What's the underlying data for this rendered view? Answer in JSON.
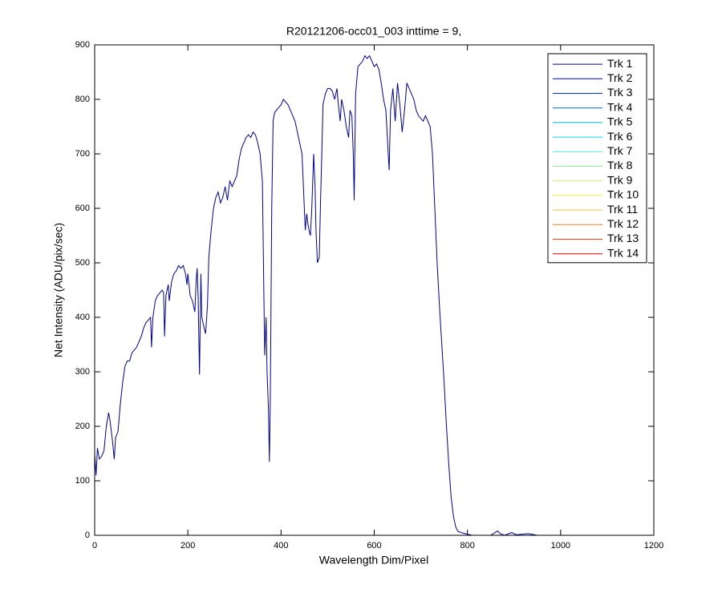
{
  "chart_data": {
    "type": "line",
    "title": "R20121206-occ01_003 inttime = 9,",
    "xlabel": "Wavelength Dim/Pixel",
    "ylabel": "Net Intensity (ADU/pix/sec)",
    "xlim": [
      0,
      1200
    ],
    "xticks": [
      0,
      200,
      400,
      600,
      800,
      1000,
      1200
    ],
    "ylim": [
      0,
      900
    ],
    "yticks": [
      0,
      100,
      200,
      300,
      400,
      500,
      600,
      700,
      800,
      900
    ],
    "legend": "upper right",
    "series": [
      {
        "name": "Trk 1",
        "color": "#00008f",
        "x": [
          0,
          3,
          6,
          10,
          15,
          20,
          25,
          30,
          33,
          38,
          42,
          45,
          50,
          55,
          60,
          65,
          70,
          75,
          80,
          85,
          90,
          95,
          100,
          105,
          110,
          115,
          120,
          122,
          125,
          130,
          135,
          140,
          145,
          148,
          150,
          153,
          158,
          160,
          165,
          170,
          175,
          180,
          185,
          190,
          195,
          198,
          200,
          205,
          210,
          215,
          218,
          220,
          222,
          225,
          228,
          230,
          235,
          238,
          242,
          245,
          250,
          255,
          260,
          265,
          270,
          275,
          280,
          285,
          290,
          295,
          300,
          305,
          310,
          315,
          320,
          325,
          330,
          335,
          340,
          345,
          350,
          355,
          360,
          363,
          365,
          368,
          370,
          373,
          375,
          377,
          380,
          383,
          386,
          390,
          395,
          400,
          405,
          410,
          415,
          420,
          425,
          430,
          435,
          440,
          445,
          450,
          452,
          455,
          458,
          460,
          463,
          466,
          470,
          473,
          475,
          478,
          482,
          485,
          488,
          490,
          495,
          500,
          505,
          510,
          515,
          520,
          523,
          527,
          530,
          535,
          540,
          545,
          548,
          552,
          555,
          557,
          560,
          565,
          570,
          575,
          580,
          585,
          590,
          595,
          600,
          605,
          610,
          615,
          620,
          625,
          630,
          632,
          635,
          640,
          645,
          650,
          655,
          660,
          665,
          670,
          675,
          680,
          685,
          690,
          695,
          700,
          705,
          710,
          715,
          720,
          725,
          730,
          735,
          740,
          745,
          750,
          755,
          760,
          765,
          770,
          775,
          780,
          790,
          800,
          810,
          850,
          865,
          870,
          880,
          895,
          905,
          930,
          950,
          1023
        ],
        "values": [
          150,
          110,
          160,
          140,
          145,
          155,
          200,
          225,
          210,
          175,
          140,
          180,
          190,
          240,
          280,
          310,
          320,
          320,
          335,
          340,
          345,
          355,
          365,
          380,
          390,
          395,
          400,
          345,
          400,
          430,
          440,
          445,
          450,
          445,
          365,
          440,
          460,
          430,
          465,
          480,
          485,
          495,
          490,
          495,
          480,
          460,
          480,
          440,
          430,
          410,
          470,
          490,
          440,
          295,
          480,
          400,
          380,
          370,
          420,
          510,
          560,
          600,
          620,
          630,
          610,
          620,
          640,
          615,
          650,
          640,
          650,
          660,
          690,
          710,
          720,
          730,
          735,
          730,
          740,
          735,
          720,
          700,
          650,
          450,
          330,
          400,
          300,
          230,
          135,
          250,
          600,
          760,
          775,
          780,
          785,
          790,
          800,
          795,
          790,
          780,
          770,
          760,
          740,
          720,
          700,
          600,
          560,
          590,
          570,
          560,
          550,
          600,
          700,
          640,
          560,
          500,
          510,
          620,
          720,
          790,
          810,
          820,
          820,
          815,
          800,
          820,
          790,
          760,
          800,
          780,
          750,
          730,
          780,
          770,
          700,
          615,
          810,
          860,
          865,
          870,
          880,
          875,
          880,
          870,
          860,
          865,
          855,
          830,
          800,
          780,
          700,
          670,
          780,
          820,
          760,
          830,
          790,
          740,
          780,
          830,
          820,
          810,
          800,
          780,
          770,
          765,
          760,
          770,
          760,
          750,
          700,
          600,
          500,
          420,
          350,
          280,
          200,
          130,
          70,
          35,
          15,
          7,
          4,
          2,
          0,
          0,
          8,
          3,
          0,
          5,
          1,
          3,
          0,
          0
        ]
      },
      {
        "name": "Trk 2",
        "color": "#0000cf",
        "x": [
          0,
          1023
        ],
        "values": [
          0,
          0
        ]
      },
      {
        "name": "Trk 3",
        "color": "#0030b8",
        "x": [
          0,
          1023
        ],
        "values": [
          0,
          0
        ]
      },
      {
        "name": "Trk 4",
        "color": "#0070a8",
        "x": [
          0,
          1023
        ],
        "values": [
          0,
          0
        ]
      },
      {
        "name": "Trk 5",
        "color": "#00b0c8",
        "x": [
          0,
          1023
        ],
        "values": [
          0,
          0
        ]
      },
      {
        "name": "Trk 6",
        "color": "#10d8d8",
        "x": [
          0,
          1023
        ],
        "values": [
          0,
          0
        ]
      },
      {
        "name": "Trk 7",
        "color": "#50e8e0",
        "x": [
          0,
          1023
        ],
        "values": [
          0,
          0
        ]
      },
      {
        "name": "Trk 8",
        "color": "#90f090",
        "x": [
          0,
          1023
        ],
        "values": [
          0,
          0
        ]
      },
      {
        "name": "Trk 9",
        "color": "#c8f070",
        "x": [
          0,
          1023
        ],
        "values": [
          0,
          0
        ]
      },
      {
        "name": "Trk 10",
        "color": "#f0f040",
        "x": [
          0,
          1023
        ],
        "values": [
          0,
          0
        ]
      },
      {
        "name": "Trk 11",
        "color": "#f8c030",
        "x": [
          0,
          1023
        ],
        "values": [
          0,
          0
        ]
      },
      {
        "name": "Trk 12",
        "color": "#f88020",
        "x": [
          0,
          1023
        ],
        "values": [
          0,
          0
        ]
      },
      {
        "name": "Trk 13",
        "color": "#f04010",
        "x": [
          0,
          1023
        ],
        "values": [
          0,
          0
        ]
      },
      {
        "name": "Trk 14",
        "color": "#d00000",
        "x": [
          0,
          1023
        ],
        "values": [
          0,
          0
        ]
      }
    ]
  }
}
